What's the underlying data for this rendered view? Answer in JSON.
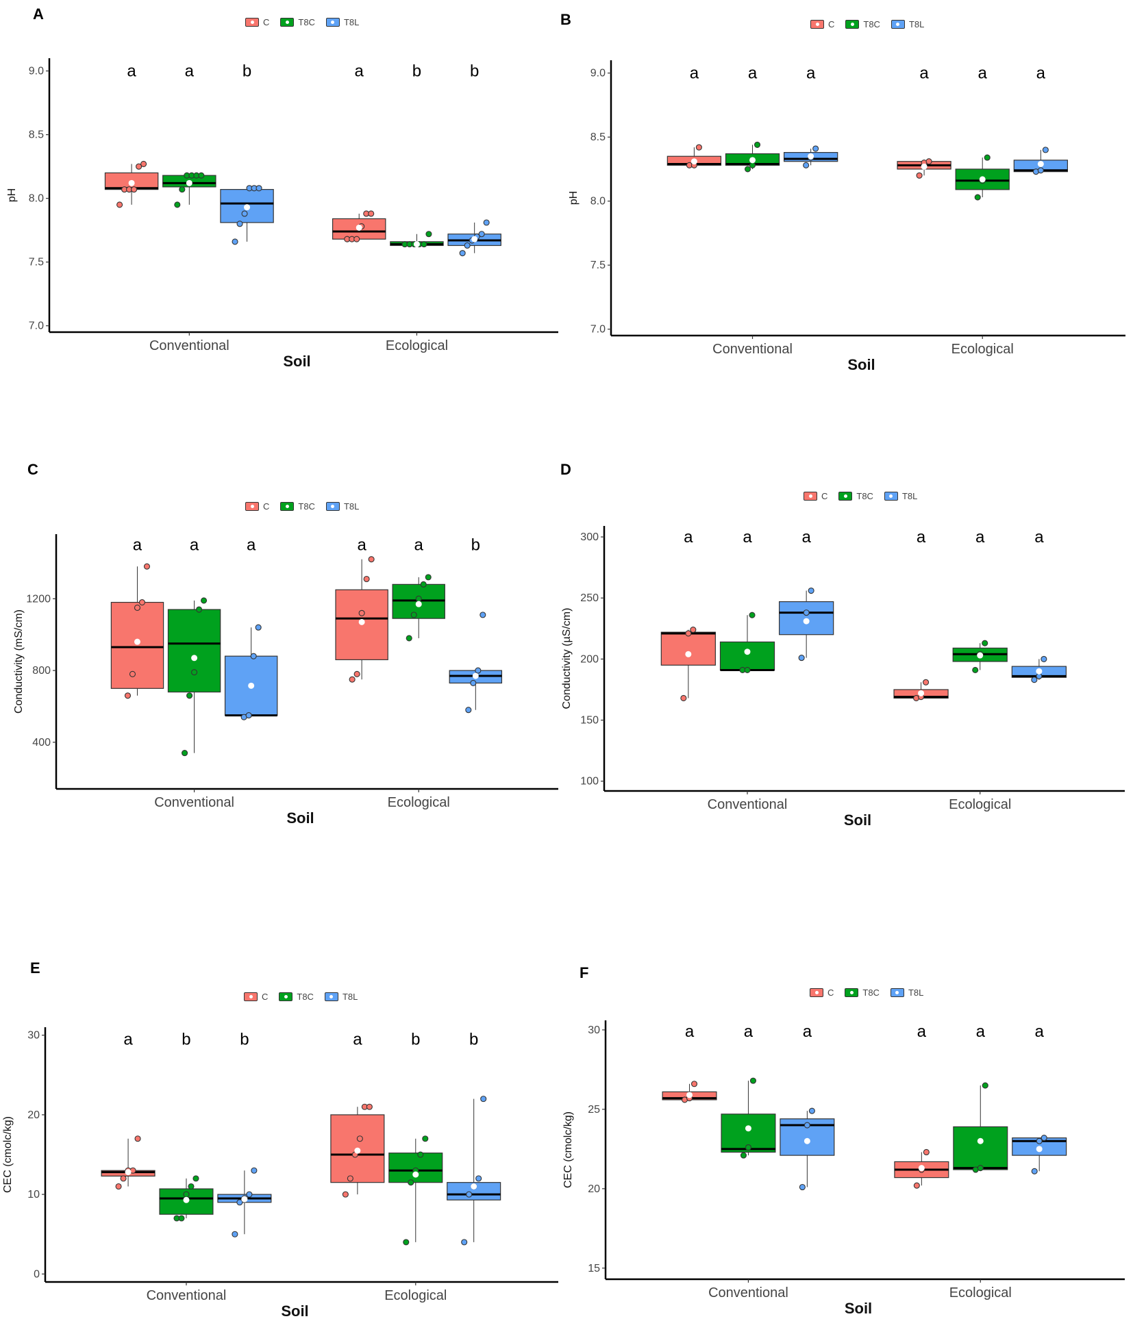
{
  "colors": {
    "C": "#F8766D",
    "T8C": "#00A11E",
    "T8L": "#5FA2F5"
  },
  "legend": [
    "C",
    "T8C",
    "T8L"
  ],
  "chart_data": [
    {
      "panel": "A",
      "type": "box",
      "title": "",
      "xlabel": "Soil",
      "ylabel": "pH",
      "ylim": [
        6.95,
        9.1
      ],
      "yticks": [
        7.0,
        7.5,
        8.0,
        8.5,
        9.0
      ],
      "tick_labels": [
        "7.0",
        "7.5",
        "8.0",
        "8.5",
        "9.0"
      ],
      "categories": [
        "Conventional",
        "Ecological"
      ],
      "groups": [
        "C",
        "T8C",
        "T8L"
      ],
      "letters_y": 9.0,
      "boxes": [
        {
          "cat": "Conventional",
          "group": "C",
          "q1": 8.07,
          "median": 8.08,
          "q3": 8.2,
          "wlo": 7.95,
          "whi": 8.27,
          "mean": 8.12,
          "points": [
            7.95,
            8.07,
            8.07,
            8.07,
            8.25,
            8.27
          ],
          "letter": "a"
        },
        {
          "cat": "Conventional",
          "group": "T8C",
          "q1": 8.09,
          "median": 8.12,
          "q3": 8.18,
          "wlo": 7.95,
          "whi": 8.18,
          "mean": 8.12,
          "points": [
            7.95,
            8.07,
            8.18,
            8.18,
            8.18,
            8.18
          ],
          "letter": "a"
        },
        {
          "cat": "Conventional",
          "group": "T8L",
          "q1": 7.81,
          "median": 7.96,
          "q3": 8.07,
          "wlo": 7.66,
          "whi": 8.08,
          "mean": 7.93,
          "points": [
            7.66,
            7.8,
            7.88,
            8.08,
            8.08,
            8.08
          ],
          "letter": "b"
        },
        {
          "cat": "Ecological",
          "group": "C",
          "q1": 7.68,
          "median": 7.74,
          "q3": 7.84,
          "wlo": 7.68,
          "whi": 7.88,
          "mean": 7.77,
          "points": [
            7.68,
            7.68,
            7.68,
            7.78,
            7.88,
            7.88
          ],
          "letter": "a"
        },
        {
          "cat": "Ecological",
          "group": "T8C",
          "q1": 7.63,
          "median": 7.64,
          "q3": 7.66,
          "wlo": 7.63,
          "whi": 7.72,
          "mean": 7.64,
          "points": [
            7.64,
            7.64,
            7.64,
            7.64,
            7.64,
            7.72
          ],
          "letter": "b"
        },
        {
          "cat": "Ecological",
          "group": "T8L",
          "q1": 7.63,
          "median": 7.67,
          "q3": 7.72,
          "wlo": 7.57,
          "whi": 7.81,
          "mean": 7.68,
          "points": [
            7.57,
            7.63,
            7.67,
            7.7,
            7.72,
            7.81
          ],
          "letter": "b"
        }
      ]
    },
    {
      "panel": "B",
      "type": "box",
      "title": "",
      "xlabel": "Soil",
      "ylabel": "pH",
      "ylim": [
        6.95,
        9.1
      ],
      "yticks": [
        7.0,
        7.5,
        8.0,
        8.5,
        9.0
      ],
      "tick_labels": [
        "7.0",
        "7.5",
        "8.0",
        "8.5",
        "9.0"
      ],
      "categories": [
        "Conventional",
        "Ecological"
      ],
      "groups": [
        "C",
        "T8C",
        "T8L"
      ],
      "letters_y": 9.0,
      "boxes": [
        {
          "cat": "Conventional",
          "group": "C",
          "q1": 8.28,
          "median": 8.29,
          "q3": 8.35,
          "wlo": 8.28,
          "whi": 8.42,
          "mean": 8.31,
          "points": [
            8.28,
            8.28,
            8.42
          ],
          "letter": "a"
        },
        {
          "cat": "Conventional",
          "group": "T8C",
          "q1": 8.28,
          "median": 8.29,
          "q3": 8.37,
          "wlo": 8.25,
          "whi": 8.44,
          "mean": 8.32,
          "points": [
            8.25,
            8.28,
            8.44
          ],
          "letter": "a"
        },
        {
          "cat": "Conventional",
          "group": "T8L",
          "q1": 8.31,
          "median": 8.33,
          "q3": 8.38,
          "wlo": 8.28,
          "whi": 8.41,
          "mean": 8.35,
          "points": [
            8.28,
            8.34,
            8.41
          ],
          "letter": "a"
        },
        {
          "cat": "Ecological",
          "group": "C",
          "q1": 8.25,
          "median": 8.28,
          "q3": 8.31,
          "wlo": 8.2,
          "whi": 8.31,
          "mean": 8.27,
          "points": [
            8.2,
            8.3,
            8.31
          ],
          "letter": "a"
        },
        {
          "cat": "Ecological",
          "group": "T8C",
          "q1": 8.09,
          "median": 8.16,
          "q3": 8.25,
          "wlo": 8.03,
          "whi": 8.34,
          "mean": 8.17,
          "points": [
            8.03,
            8.16,
            8.34
          ],
          "letter": "a"
        },
        {
          "cat": "Ecological",
          "group": "T8L",
          "q1": 8.23,
          "median": 8.24,
          "q3": 8.32,
          "wlo": 8.23,
          "whi": 8.4,
          "mean": 8.29,
          "points": [
            8.23,
            8.24,
            8.4
          ],
          "letter": "a"
        }
      ]
    },
    {
      "panel": "C",
      "type": "box",
      "title": "",
      "xlabel": "Soil",
      "ylabel": "Conductivity (mS/cm)",
      "ylim": [
        140,
        1560
      ],
      "yticks": [
        400,
        800,
        1200
      ],
      "tick_labels": [
        "400",
        "800",
        "1200"
      ],
      "categories": [
        "Conventional",
        "Ecological"
      ],
      "groups": [
        "C",
        "T8C",
        "T8L"
      ],
      "letters_y": 1500,
      "boxes": [
        {
          "cat": "Conventional",
          "group": "C",
          "q1": 700,
          "median": 930,
          "q3": 1180,
          "wlo": 660,
          "whi": 1380,
          "mean": 960,
          "points": [
            660,
            780,
            1150,
            1180,
            1380
          ],
          "letter": "a"
        },
        {
          "cat": "Conventional",
          "group": "T8C",
          "q1": 680,
          "median": 950,
          "q3": 1140,
          "wlo": 340,
          "whi": 1190,
          "mean": 870,
          "points": [
            340,
            660,
            790,
            1140,
            1190
          ],
          "letter": "a"
        },
        {
          "cat": "Conventional",
          "group": "T8L",
          "q1": 550,
          "median": 550,
          "q3": 880,
          "wlo": 540,
          "whi": 1040,
          "mean": 715,
          "points": [
            540,
            550,
            880,
            1040
          ],
          "letter": "a"
        },
        {
          "cat": "Ecological",
          "group": "C",
          "q1": 860,
          "median": 1090,
          "q3": 1250,
          "wlo": 750,
          "whi": 1420,
          "mean": 1070,
          "points": [
            750,
            780,
            1120,
            1310,
            1420
          ],
          "letter": "a"
        },
        {
          "cat": "Ecological",
          "group": "T8C",
          "q1": 1090,
          "median": 1190,
          "q3": 1280,
          "wlo": 980,
          "whi": 1320,
          "mean": 1170,
          "points": [
            980,
            1110,
            1200,
            1280,
            1320
          ],
          "letter": "a"
        },
        {
          "cat": "Ecological",
          "group": "T8L",
          "q1": 730,
          "median": 770,
          "q3": 800,
          "wlo": 580,
          "whi": 800,
          "mean": 770,
          "points": [
            580,
            730,
            800,
            1110
          ],
          "letter": "b"
        }
      ]
    },
    {
      "panel": "D",
      "type": "box",
      "title": "",
      "xlabel": "Soil",
      "ylabel": "Conductivity (µS/cm)",
      "ylim": [
        92,
        309
      ],
      "yticks": [
        100,
        150,
        200,
        250,
        300
      ],
      "tick_labels": [
        "100",
        "150",
        "200",
        "250",
        "300"
      ],
      "categories": [
        "Conventional",
        "Ecological"
      ],
      "groups": [
        "C",
        "T8C",
        "T8L"
      ],
      "letters_y": 300,
      "boxes": [
        {
          "cat": "Conventional",
          "group": "C",
          "q1": 195,
          "median": 221,
          "q3": 222,
          "wlo": 168,
          "whi": 224,
          "mean": 204,
          "points": [
            168,
            221,
            224
          ],
          "letter": "a"
        },
        {
          "cat": "Conventional",
          "group": "T8C",
          "q1": 191,
          "median": 191,
          "q3": 214,
          "wlo": 191,
          "whi": 236,
          "mean": 206,
          "points": [
            191,
            191,
            236
          ],
          "letter": "a"
        },
        {
          "cat": "Conventional",
          "group": "T8L",
          "q1": 220,
          "median": 238,
          "q3": 247,
          "wlo": 201,
          "whi": 256,
          "mean": 231,
          "points": [
            201,
            238,
            256
          ],
          "letter": "a"
        },
        {
          "cat": "Ecological",
          "group": "C",
          "q1": 168,
          "median": 169,
          "q3": 175,
          "wlo": 168,
          "whi": 181,
          "mean": 172,
          "points": [
            168,
            169,
            181
          ],
          "letter": "a"
        },
        {
          "cat": "Ecological",
          "group": "T8C",
          "q1": 198,
          "median": 204,
          "q3": 209,
          "wlo": 191,
          "whi": 213,
          "mean": 203,
          "points": [
            191,
            204,
            213
          ],
          "letter": "a"
        },
        {
          "cat": "Ecological",
          "group": "T8L",
          "q1": 185,
          "median": 186,
          "q3": 194,
          "wlo": 183,
          "whi": 200,
          "mean": 190,
          "points": [
            183,
            186,
            200
          ],
          "letter": "a"
        }
      ]
    },
    {
      "panel": "E",
      "type": "box",
      "title": "",
      "xlabel": "Soil",
      "ylabel": "CEC (cmolc/kg)",
      "ylim": [
        -1,
        31
      ],
      "yticks": [
        0,
        10,
        20,
        30
      ],
      "tick_labels": [
        "0",
        "10",
        "20",
        "30"
      ],
      "categories": [
        "Conventional",
        "Ecological"
      ],
      "groups": [
        "C",
        "T8C",
        "T8L"
      ],
      "letters_y": 29.5,
      "boxes": [
        {
          "cat": "Conventional",
          "group": "C",
          "q1": 12.3,
          "median": 12.8,
          "q3": 13,
          "wlo": 11,
          "whi": 17,
          "mean": 12.8,
          "points": [
            11,
            12,
            13,
            13,
            17
          ],
          "letter": "a"
        },
        {
          "cat": "Conventional",
          "group": "T8C",
          "q1": 7.5,
          "median": 9.5,
          "q3": 10.7,
          "wlo": 7,
          "whi": 12,
          "mean": 9.3,
          "points": [
            7,
            7,
            10,
            11,
            12
          ],
          "letter": "b"
        },
        {
          "cat": "Conventional",
          "group": "T8L",
          "q1": 9,
          "median": 9.5,
          "q3": 10,
          "wlo": 5,
          "whi": 13,
          "mean": 9.4,
          "points": [
            5,
            9,
            9.5,
            10,
            13
          ],
          "letter": "b"
        },
        {
          "cat": "Ecological",
          "group": "C",
          "q1": 11.5,
          "median": 15,
          "q3": 20,
          "wlo": 10,
          "whi": 21,
          "mean": 15.5,
          "points": [
            10,
            12,
            15,
            17,
            21,
            21
          ],
          "letter": "a"
        },
        {
          "cat": "Ecological",
          "group": "T8C",
          "q1": 11.5,
          "median": 13,
          "q3": 15.2,
          "wlo": 4,
          "whi": 17,
          "mean": 12.5,
          "points": [
            4,
            11.5,
            13,
            15,
            17
          ],
          "letter": "b"
        },
        {
          "cat": "Ecological",
          "group": "T8L",
          "q1": 9.3,
          "median": 10,
          "q3": 11.5,
          "wlo": 4,
          "whi": 22,
          "mean": 11,
          "points": [
            4,
            10,
            11,
            12,
            22
          ],
          "letter": "b"
        }
      ]
    },
    {
      "panel": "F",
      "type": "box",
      "title": "",
      "xlabel": "Soil",
      "ylabel": "CEC (cmolc/kg)",
      "ylim": [
        14.3,
        30.6
      ],
      "yticks": [
        15,
        20,
        25,
        30
      ],
      "tick_labels": [
        "15",
        "20",
        "25",
        "30"
      ],
      "categories": [
        "Conventional",
        "Ecological"
      ],
      "groups": [
        "C",
        "T8C",
        "T8L"
      ],
      "letters_y": 29.9,
      "boxes": [
        {
          "cat": "Conventional",
          "group": "C",
          "q1": 25.6,
          "median": 25.7,
          "q3": 26.1,
          "wlo": 25.6,
          "whi": 26.6,
          "mean": 25.9,
          "points": [
            25.6,
            25.7,
            26.6
          ],
          "letter": "a"
        },
        {
          "cat": "Conventional",
          "group": "T8C",
          "q1": 22.3,
          "median": 22.5,
          "q3": 24.7,
          "wlo": 22.1,
          "whi": 26.8,
          "mean": 23.8,
          "points": [
            22.1,
            22.6,
            26.8
          ],
          "letter": "a"
        },
        {
          "cat": "Conventional",
          "group": "T8L",
          "q1": 22.1,
          "median": 24.0,
          "q3": 24.4,
          "wlo": 20.1,
          "whi": 24.9,
          "mean": 23.0,
          "points": [
            20.1,
            24.0,
            24.9
          ],
          "letter": "a"
        },
        {
          "cat": "Ecological",
          "group": "C",
          "q1": 20.7,
          "median": 21.2,
          "q3": 21.7,
          "wlo": 20.2,
          "whi": 22.3,
          "mean": 21.3,
          "points": [
            20.2,
            21.2,
            22.3
          ],
          "letter": "a"
        },
        {
          "cat": "Ecological",
          "group": "T8C",
          "q1": 21.2,
          "median": 21.3,
          "q3": 23.9,
          "wlo": 21.2,
          "whi": 26.5,
          "mean": 23.0,
          "points": [
            21.2,
            21.3,
            26.5
          ],
          "letter": "a"
        },
        {
          "cat": "Ecological",
          "group": "T8L",
          "q1": 22.1,
          "median": 23.0,
          "q3": 23.2,
          "wlo": 21.1,
          "whi": 23.2,
          "mean": 22.5,
          "points": [
            21.1,
            23.0,
            23.2
          ],
          "letter": "a"
        }
      ]
    }
  ]
}
